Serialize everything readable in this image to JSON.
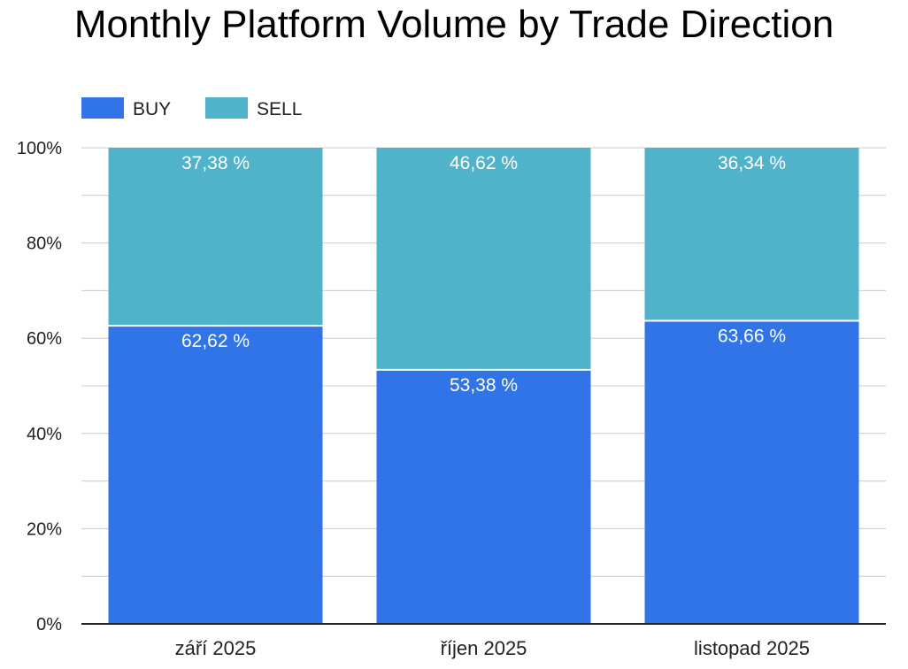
{
  "chart_data": {
    "type": "bar",
    "stacked": true,
    "normalized": true,
    "title": "Monthly Platform Volume by Trade Direction",
    "xlabel": "",
    "ylabel": "",
    "categories": [
      "září 2025",
      "říjen 2025",
      "listopad 2025"
    ],
    "series": [
      {
        "name": "BUY",
        "color": "#3174e8",
        "values": [
          62.62,
          53.38,
          63.66
        ],
        "labels": [
          "62,62 %",
          "53,38 %",
          "63,66 %"
        ]
      },
      {
        "name": "SELL",
        "color": "#51b3c9",
        "values": [
          37.38,
          46.62,
          36.34
        ],
        "labels": [
          "37,38 %",
          "46,62 %",
          "36,34 %"
        ]
      }
    ],
    "ylim": [
      0,
      100
    ],
    "yticks": [
      "0%",
      "20%",
      "40%",
      "60%",
      "80%",
      "100%"
    ],
    "grid": true,
    "legend_position": "top-left"
  }
}
